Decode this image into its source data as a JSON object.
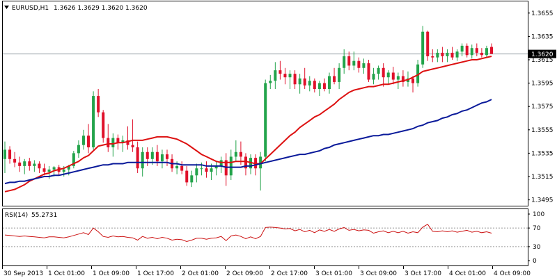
{
  "header": {
    "symbol": "EURUSD,H1",
    "quotes": "1.3626 1.3629 1.3620 1.3620"
  },
  "price_tag": "1.3620",
  "rsi_header": {
    "label": "RSI(14)",
    "value": "55.2731"
  },
  "colors": {
    "bull": "#22a34a",
    "bear": "#e0102a",
    "ma_fast": "#dd1111",
    "ma_slow": "#0a1a9a",
    "rsi": "#cc1111",
    "grid": "#9aa0a8"
  },
  "chart_data": [
    {
      "type": "candlestick",
      "title": "EURUSD,H1",
      "x_tick_labels": [
        "30 Sep 2013",
        "1 Oct 01:00",
        "1 Oct 09:00",
        "1 Oct 17:00",
        "2 Oct 01:00",
        "2 Oct 09:00",
        "2 Oct 17:00",
        "3 Oct 01:00",
        "3 Oct 09:00",
        "3 Oct 17:00",
        "4 Oct 01:00",
        "4 Oct 09:00"
      ],
      "y_tick_labels": [
        "1.3655",
        "1.3635",
        "1.3615",
        "1.3595",
        "1.3575",
        "1.3555",
        "1.3535",
        "1.3515",
        "1.3495"
      ],
      "ylim": [
        1.349,
        1.3665
      ],
      "current_price": 1.362,
      "grid": false,
      "ohlc": [
        [
          1.353,
          1.3545,
          1.3518,
          1.3538
        ],
        [
          1.3538,
          1.3541,
          1.3526,
          1.353
        ],
        [
          1.353,
          1.3536,
          1.3523,
          1.3527
        ],
        [
          1.3527,
          1.3532,
          1.3519,
          1.3524
        ],
        [
          1.3524,
          1.353,
          1.3517,
          1.3528
        ],
        [
          1.3528,
          1.3531,
          1.352,
          1.3524
        ],
        [
          1.3524,
          1.3529,
          1.3519,
          1.3526
        ],
        [
          1.3526,
          1.3528,
          1.3518,
          1.3522
        ],
        [
          1.3522,
          1.3526,
          1.3516,
          1.3519
        ],
        [
          1.3519,
          1.3524,
          1.3513,
          1.3521
        ],
        [
          1.3521,
          1.3524,
          1.3515,
          1.3523
        ],
        [
          1.3523,
          1.3525,
          1.3516,
          1.3519
        ],
        [
          1.3519,
          1.3524,
          1.3515,
          1.3521
        ],
        [
          1.3521,
          1.3525,
          1.3516,
          1.3524
        ],
        [
          1.3524,
          1.3537,
          1.3522,
          1.3535
        ],
        [
          1.3535,
          1.3546,
          1.3531,
          1.3542
        ],
        [
          1.3542,
          1.3555,
          1.3538,
          1.355
        ],
        [
          1.355,
          1.356,
          1.3535,
          1.354
        ],
        [
          1.354,
          1.3588,
          1.3538,
          1.3584
        ],
        [
          1.3584,
          1.359,
          1.3566,
          1.357
        ],
        [
          1.357,
          1.3572,
          1.3544,
          1.3548
        ],
        [
          1.3548,
          1.356,
          1.3536,
          1.354
        ],
        [
          1.354,
          1.3552,
          1.3532,
          1.3548
        ],
        [
          1.3548,
          1.3551,
          1.3538,
          1.3544
        ],
        [
          1.3544,
          1.355,
          1.3536,
          1.3546
        ],
        [
          1.3546,
          1.3558,
          1.3538,
          1.3542
        ],
        [
          1.3542,
          1.3564,
          1.3536,
          1.354
        ],
        [
          1.354,
          1.3545,
          1.3518,
          1.3522
        ],
        [
          1.3522,
          1.354,
          1.3515,
          1.3536
        ],
        [
          1.3536,
          1.354,
          1.3524,
          1.353
        ],
        [
          1.353,
          1.354,
          1.3525,
          1.3536
        ],
        [
          1.3536,
          1.3542,
          1.3524,
          1.3528
        ],
        [
          1.3528,
          1.3538,
          1.3522,
          1.3534
        ],
        [
          1.3534,
          1.3538,
          1.3524,
          1.353
        ],
        [
          1.353,
          1.3534,
          1.3519,
          1.3522
        ],
        [
          1.3522,
          1.3528,
          1.3517,
          1.3524
        ],
        [
          1.3524,
          1.3528,
          1.3517,
          1.352
        ],
        [
          1.352,
          1.3524,
          1.3507,
          1.351
        ],
        [
          1.351,
          1.352,
          1.3506,
          1.3516
        ],
        [
          1.3516,
          1.3526,
          1.351,
          1.3522
        ],
        [
          1.3522,
          1.3527,
          1.3516,
          1.3522
        ],
        [
          1.3522,
          1.3528,
          1.3514,
          1.3519
        ],
        [
          1.3519,
          1.3526,
          1.3512,
          1.3522
        ],
        [
          1.3522,
          1.3528,
          1.3516,
          1.3524
        ],
        [
          1.3524,
          1.3532,
          1.3518,
          1.3529
        ],
        [
          1.3529,
          1.3535,
          1.3507,
          1.3516
        ],
        [
          1.3516,
          1.3538,
          1.3512,
          1.3532
        ],
        [
          1.3532,
          1.3546,
          1.3528,
          1.3536
        ],
        [
          1.3536,
          1.3545,
          1.3525,
          1.3532
        ],
        [
          1.3532,
          1.3535,
          1.3516,
          1.3522
        ],
        [
          1.3522,
          1.3534,
          1.3517,
          1.3531
        ],
        [
          1.3531,
          1.3534,
          1.3516,
          1.3522
        ],
        [
          1.3522,
          1.3536,
          1.3503,
          1.3532
        ],
        [
          1.3532,
          1.3598,
          1.3528,
          1.3595
        ],
        [
          1.3595,
          1.3602,
          1.359,
          1.3597
        ],
        [
          1.3597,
          1.3613,
          1.359,
          1.3606
        ],
        [
          1.3606,
          1.3614,
          1.3598,
          1.3603
        ],
        [
          1.3603,
          1.3608,
          1.3594,
          1.36
        ],
        [
          1.36,
          1.3606,
          1.359,
          1.3603
        ],
        [
          1.3603,
          1.3606,
          1.359,
          1.3594
        ],
        [
          1.3594,
          1.3603,
          1.3586,
          1.3599
        ],
        [
          1.3599,
          1.3608,
          1.359,
          1.3593
        ],
        [
          1.3593,
          1.3601,
          1.3588,
          1.3597
        ],
        [
          1.3597,
          1.3599,
          1.3587,
          1.359
        ],
        [
          1.359,
          1.3597,
          1.3584,
          1.3595
        ],
        [
          1.3595,
          1.3599,
          1.3588,
          1.359
        ],
        [
          1.359,
          1.3604,
          1.3586,
          1.3601
        ],
        [
          1.3601,
          1.3608,
          1.3594,
          1.3596
        ],
        [
          1.3596,
          1.3612,
          1.359,
          1.3608
        ],
        [
          1.3608,
          1.3624,
          1.3603,
          1.3618
        ],
        [
          1.3618,
          1.3622,
          1.3606,
          1.361
        ],
        [
          1.361,
          1.3622,
          1.3606,
          1.3614
        ],
        [
          1.3614,
          1.3617,
          1.3604,
          1.3608
        ],
        [
          1.3608,
          1.3616,
          1.3603,
          1.3612
        ],
        [
          1.3612,
          1.3615,
          1.3596,
          1.3598
        ],
        [
          1.3598,
          1.3608,
          1.3594,
          1.3603
        ],
        [
          1.3603,
          1.361,
          1.3598,
          1.3608
        ],
        [
          1.3608,
          1.3612,
          1.3592,
          1.36
        ],
        [
          1.36,
          1.3606,
          1.3594,
          1.3604
        ],
        [
          1.3604,
          1.3609,
          1.3594,
          1.3598
        ],
        [
          1.3598,
          1.3604,
          1.359,
          1.3601
        ],
        [
          1.3601,
          1.3606,
          1.3592,
          1.3596
        ],
        [
          1.3596,
          1.3605,
          1.3592,
          1.3599
        ],
        [
          1.3599,
          1.3601,
          1.3587,
          1.3595
        ],
        [
          1.3595,
          1.3615,
          1.3592,
          1.3611
        ],
        [
          1.3611,
          1.3644,
          1.3608,
          1.3639
        ],
        [
          1.3639,
          1.364,
          1.3614,
          1.3618
        ],
        [
          1.3618,
          1.3624,
          1.3613,
          1.3617
        ],
        [
          1.3617,
          1.3624,
          1.3613,
          1.3621
        ],
        [
          1.3621,
          1.3626,
          1.3613,
          1.3618
        ],
        [
          1.3618,
          1.3624,
          1.3613,
          1.3621
        ],
        [
          1.3621,
          1.3626,
          1.3615,
          1.3617
        ],
        [
          1.3617,
          1.3624,
          1.3614,
          1.3622
        ],
        [
          1.3622,
          1.3629,
          1.3618,
          1.3627
        ],
        [
          1.3627,
          1.3629,
          1.3617,
          1.3619
        ],
        [
          1.3619,
          1.3628,
          1.3616,
          1.3625
        ],
        [
          1.3625,
          1.3629,
          1.3618,
          1.3621
        ],
        [
          1.3621,
          1.3625,
          1.3617,
          1.3619
        ],
        [
          1.3619,
          1.3627,
          1.3617,
          1.3625
        ],
        [
          1.3626,
          1.3629,
          1.362,
          1.362
        ]
      ],
      "series": [
        {
          "type": "line",
          "values": [
            1.3502,
            1.3503,
            1.3504,
            1.3506,
            1.3508,
            1.3511,
            1.3513,
            1.3515,
            1.3517,
            1.3518,
            1.352,
            1.3521,
            1.3522,
            1.3524,
            1.3526,
            1.3528,
            1.3531,
            1.3533,
            1.3537,
            1.3541,
            1.3542,
            1.3543,
            1.3543,
            1.3544,
            1.3544,
            1.3545,
            1.3546,
            1.3546,
            1.3546,
            1.3547,
            1.3548,
            1.3549,
            1.3549,
            1.3549,
            1.3548,
            1.3547,
            1.3545,
            1.3543,
            1.354,
            1.3537,
            1.3534,
            1.3532,
            1.353,
            1.3528,
            1.3527,
            1.3527,
            1.3527,
            1.3528,
            1.3528,
            1.3528,
            1.3527,
            1.3526,
            1.3526,
            1.353,
            1.3534,
            1.3538,
            1.3542,
            1.3546,
            1.355,
            1.3553,
            1.3557,
            1.356,
            1.3563,
            1.3566,
            1.3568,
            1.3571,
            1.3574,
            1.3577,
            1.3581,
            1.3584,
            1.3587,
            1.3589,
            1.359,
            1.3591,
            1.3592,
            1.3592,
            1.3593,
            1.3594,
            1.3594,
            1.3595,
            1.3596,
            1.3597,
            1.3598,
            1.36,
            1.3602,
            1.3605,
            1.3606,
            1.3607,
            1.3608,
            1.3609,
            1.361,
            1.3611,
            1.3612,
            1.3613,
            1.3614,
            1.3615,
            1.3615,
            1.3616,
            1.3617,
            1.3618
          ]
        },
        {
          "type": "line",
          "values": [
            1.3509,
            1.351,
            1.351,
            1.3511,
            1.3511,
            1.3512,
            1.3513,
            1.3514,
            1.3515,
            1.3515,
            1.3516,
            1.3516,
            1.3517,
            1.3518,
            1.3519,
            1.352,
            1.3521,
            1.3522,
            1.3523,
            1.3524,
            1.3525,
            1.3525,
            1.3526,
            1.3526,
            1.3526,
            1.3527,
            1.3527,
            1.3527,
            1.3527,
            1.3527,
            1.3527,
            1.3527,
            1.3527,
            1.3527,
            1.3526,
            1.3526,
            1.3525,
            1.3525,
            1.3525,
            1.3525,
            1.3525,
            1.3524,
            1.3524,
            1.3524,
            1.3524,
            1.3523,
            1.3523,
            1.3523,
            1.3523,
            1.3524,
            1.3524,
            1.3525,
            1.3526,
            1.3527,
            1.3528,
            1.3529,
            1.353,
            1.3531,
            1.3532,
            1.3533,
            1.3534,
            1.3534,
            1.3535,
            1.3536,
            1.3537,
            1.3539,
            1.354,
            1.3542,
            1.3543,
            1.3544,
            1.3545,
            1.3546,
            1.3547,
            1.3548,
            1.3549,
            1.355,
            1.355,
            1.3551,
            1.3551,
            1.3552,
            1.3553,
            1.3554,
            1.3555,
            1.3556,
            1.3558,
            1.3559,
            1.3561,
            1.3562,
            1.3563,
            1.3565,
            1.3566,
            1.3568,
            1.3569,
            1.3571,
            1.3572,
            1.3574,
            1.3576,
            1.3578,
            1.3579,
            1.3581
          ]
        }
      ]
    },
    {
      "type": "line",
      "title": "RSI(14) 55.2731",
      "y_tick_labels": [
        "100",
        "70",
        "30",
        "0"
      ],
      "ylim": [
        0,
        100
      ],
      "levels": [
        70,
        30
      ],
      "series": [
        {
          "values": [
            55,
            54,
            53,
            52,
            53,
            52,
            51,
            50,
            49,
            51,
            51,
            50,
            49,
            51,
            54,
            57,
            60,
            56,
            70,
            62,
            52,
            50,
            53,
            51,
            52,
            50,
            49,
            44,
            52,
            48,
            50,
            47,
            50,
            48,
            44,
            46,
            45,
            41,
            44,
            48,
            48,
            46,
            48,
            49,
            52,
            43,
            53,
            55,
            52,
            47,
            51,
            47,
            52,
            71,
            72,
            71,
            70,
            68,
            69,
            64,
            67,
            62,
            65,
            60,
            66,
            63,
            67,
            63,
            68,
            71,
            65,
            67,
            64,
            66,
            65,
            59,
            62,
            64,
            60,
            63,
            60,
            63,
            59,
            62,
            60,
            72,
            78,
            63,
            62,
            64,
            62,
            64,
            61,
            63,
            65,
            61,
            63,
            60,
            62,
            59
          ]
        }
      ]
    }
  ]
}
